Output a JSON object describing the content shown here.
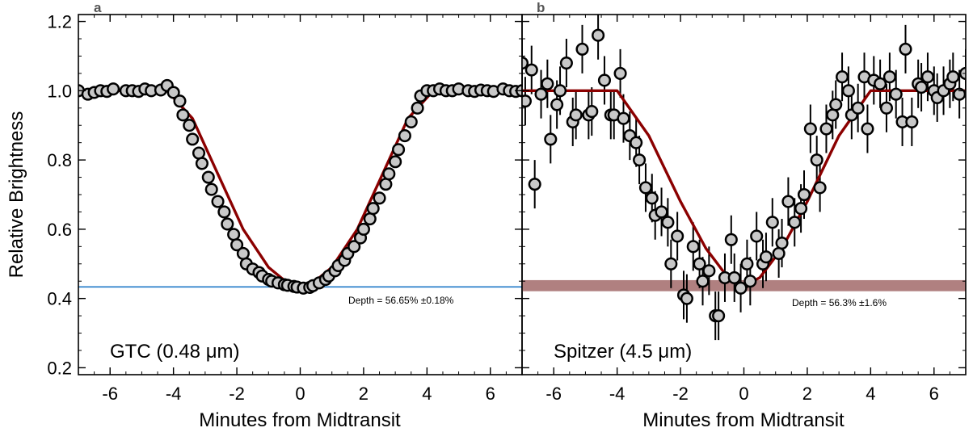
{
  "figure": {
    "ylabel": "Relative Brightness",
    "xlabel": "Minutes from Midtransit"
  },
  "chart_data": [
    {
      "type": "scatter",
      "panel": "a",
      "instrument_label": "GTC  (0.48 μm)",
      "depth_label": "Depth = 56.65% ±0.18%",
      "depth_level": 0.4335,
      "depth_style": "line",
      "xlabel": "Minutes from Midtransit",
      "ylabel": "Relative Brightness",
      "xlim": [
        -7,
        7
      ],
      "ylim": [
        0.18,
        1.22
      ],
      "x_ticks": [
        -6,
        -4,
        -2,
        0,
        2,
        4,
        6
      ],
      "y_ticks": [
        0.2,
        0.4,
        0.6,
        0.8,
        1.0,
        1.2
      ],
      "model_curve": {
        "x": [
          -7,
          -4.2,
          -3.4,
          -2.6,
          -1.8,
          -1.0,
          -0.4,
          0.0,
          0.4,
          1.0,
          1.8,
          2.6,
          3.4,
          4.2,
          7
        ],
        "y": [
          1.0,
          1.0,
          0.92,
          0.76,
          0.6,
          0.49,
          0.445,
          0.4335,
          0.445,
          0.49,
          0.6,
          0.76,
          0.92,
          1.0,
          1.0
        ]
      },
      "points": {
        "x": [
          -7.0,
          -6.7,
          -6.5,
          -6.3,
          -6.1,
          -5.9,
          -5.5,
          -5.3,
          -5.1,
          -4.9,
          -4.7,
          -4.4,
          -4.2,
          -4.0,
          -3.8,
          -3.7,
          -3.5,
          -3.4,
          -3.2,
          -3.1,
          -2.9,
          -2.8,
          -2.6,
          -2.4,
          -2.3,
          -2.1,
          -2.0,
          -1.8,
          -1.7,
          -1.5,
          -1.3,
          -1.2,
          -1.0,
          -0.9,
          -0.7,
          -0.5,
          -0.4,
          -0.2,
          -0.1,
          0.1,
          0.3,
          0.4,
          0.6,
          0.8,
          0.9,
          1.1,
          1.2,
          1.4,
          1.5,
          1.7,
          1.9,
          2.0,
          2.2,
          2.3,
          2.5,
          2.7,
          2.8,
          3.0,
          3.1,
          3.3,
          3.5,
          3.7,
          3.8,
          4.0,
          4.2,
          4.4,
          4.6,
          4.8,
          5.0,
          5.3,
          5.5,
          5.7,
          5.9,
          6.1,
          6.4,
          6.6,
          6.8,
          7.0
        ],
        "y": [
          1.0,
          0.99,
          0.995,
          1.0,
          0.998,
          1.005,
          1.0,
          1.0,
          0.998,
          1.005,
          1.0,
          1.002,
          1.015,
          0.995,
          0.97,
          0.93,
          0.9,
          0.86,
          0.82,
          0.79,
          0.75,
          0.715,
          0.68,
          0.65,
          0.615,
          0.585,
          0.555,
          0.53,
          0.5,
          0.485,
          0.475,
          0.465,
          0.455,
          0.45,
          0.445,
          0.44,
          0.438,
          0.435,
          0.433,
          0.43,
          0.432,
          0.437,
          0.445,
          0.455,
          0.465,
          0.48,
          0.495,
          0.51,
          0.53,
          0.55,
          0.575,
          0.6,
          0.63,
          0.66,
          0.69,
          0.73,
          0.76,
          0.795,
          0.83,
          0.87,
          0.91,
          0.95,
          0.985,
          1.0,
          1.0,
          1.005,
          1.0,
          1.0,
          1.005,
          1.0,
          0.998,
          1.002,
          1.0,
          0.998,
          1.005,
          1.0,
          0.998,
          1.0
        ]
      },
      "colors": {
        "marker_fill": "#c8c8c8",
        "marker_edge": "#000000",
        "model": "#8b0000",
        "depth": "#1f78c8"
      }
    },
    {
      "type": "scatter",
      "panel": "b",
      "instrument_label": "Spitzer (4.5 μm)",
      "depth_label": "Depth = 56.3% ±1.6%",
      "depth_level": 0.437,
      "depth_band": [
        0.421,
        0.453
      ],
      "depth_style": "band",
      "xlabel": "Minutes from Midtransit",
      "xlim": [
        -7,
        7
      ],
      "ylim": [
        0.18,
        1.22
      ],
      "x_ticks": [
        -6,
        -4,
        -2,
        0,
        2,
        4,
        6
      ],
      "y_ticks": [
        0.2,
        0.4,
        0.6,
        0.8,
        1.0,
        1.2
      ],
      "model_curve": {
        "x": [
          -7,
          -4.0,
          -3.0,
          -2.0,
          -1.2,
          -0.5,
          0.0,
          0.5,
          1.2,
          2.0,
          3.0,
          4.0,
          7
        ],
        "y": [
          1.0,
          1.0,
          0.87,
          0.68,
          0.545,
          0.46,
          0.437,
          0.46,
          0.545,
          0.68,
          0.87,
          1.0,
          1.0
        ]
      },
      "points": {
        "x": [
          -7.0,
          -6.9,
          -6.7,
          -6.6,
          -6.4,
          -6.2,
          -6.1,
          -5.9,
          -5.8,
          -5.6,
          -5.4,
          -5.3,
          -5.1,
          -4.9,
          -4.8,
          -4.6,
          -4.4,
          -4.2,
          -4.1,
          -3.9,
          -3.8,
          -3.6,
          -3.4,
          -3.3,
          -3.1,
          -2.9,
          -2.8,
          -2.6,
          -2.4,
          -2.3,
          -2.1,
          -1.9,
          -1.8,
          -1.6,
          -1.4,
          -1.3,
          -1.1,
          -0.9,
          -0.8,
          -0.6,
          -0.4,
          -0.3,
          -0.1,
          0.1,
          0.2,
          0.4,
          0.6,
          0.7,
          0.9,
          1.1,
          1.2,
          1.4,
          1.6,
          1.8,
          1.9,
          2.1,
          2.3,
          2.4,
          2.6,
          2.8,
          2.9,
          3.1,
          3.3,
          3.4,
          3.6,
          3.8,
          3.9,
          4.1,
          4.3,
          4.5,
          4.6,
          4.8,
          5.0,
          5.1,
          5.3,
          5.5,
          5.6,
          5.8,
          6.0,
          6.1,
          6.3,
          6.5,
          6.6,
          6.8,
          7.0
        ],
        "y": [
          1.08,
          0.97,
          1.06,
          0.73,
          0.99,
          1.02,
          0.86,
          0.96,
          1.0,
          1.08,
          0.91,
          0.93,
          1.12,
          0.93,
          0.94,
          1.16,
          1.03,
          0.93,
          0.93,
          1.05,
          0.92,
          0.87,
          0.85,
          0.8,
          0.72,
          0.69,
          0.64,
          0.65,
          0.62,
          0.5,
          0.58,
          0.41,
          0.4,
          0.55,
          0.5,
          0.45,
          0.48,
          0.35,
          0.35,
          0.46,
          0.57,
          0.46,
          0.43,
          0.5,
          0.45,
          0.58,
          0.5,
          0.52,
          0.62,
          0.53,
          0.56,
          0.68,
          0.62,
          0.66,
          0.7,
          0.89,
          0.8,
          0.72,
          0.89,
          0.93,
          0.96,
          1.04,
          1.0,
          0.93,
          0.95,
          1.04,
          0.89,
          1.03,
          1.02,
          0.95,
          1.04,
          0.99,
          0.91,
          1.12,
          0.91,
          1.02,
          1.01,
          1.04,
          1.0,
          0.98,
          1.0,
          1.02,
          1.04,
          0.99,
          1.05
        ]
      },
      "errors": 0.07,
      "colors": {
        "marker_fill": "#c8c8c8",
        "marker_edge": "#000000",
        "model": "#8b0000",
        "depth": "#b08080"
      }
    }
  ]
}
